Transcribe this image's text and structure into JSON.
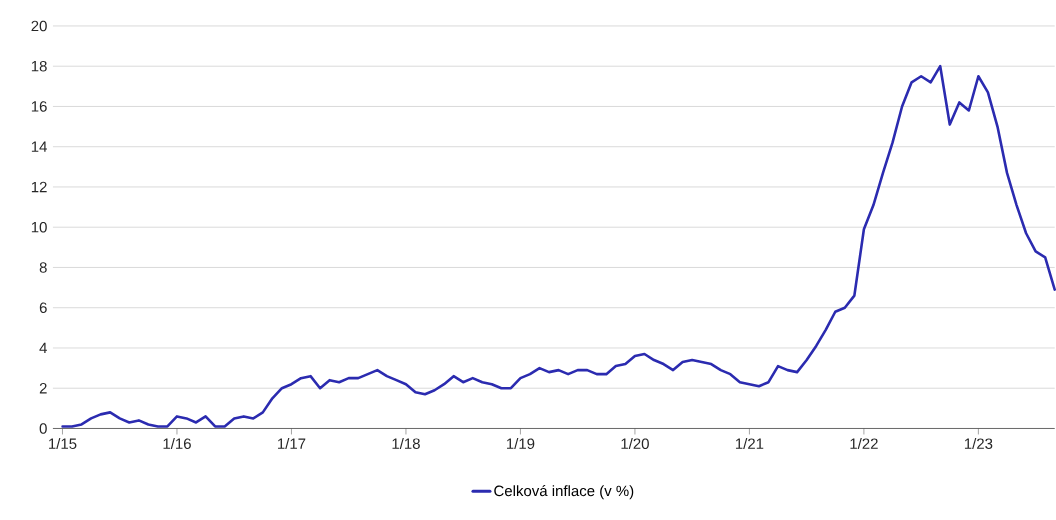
{
  "chart_data": {
    "type": "line",
    "x": [
      "2015-01",
      "2015-02",
      "2015-03",
      "2015-04",
      "2015-05",
      "2015-06",
      "2015-07",
      "2015-08",
      "2015-09",
      "2015-10",
      "2015-11",
      "2015-12",
      "2016-01",
      "2016-02",
      "2016-03",
      "2016-04",
      "2016-05",
      "2016-06",
      "2016-07",
      "2016-08",
      "2016-09",
      "2016-10",
      "2016-11",
      "2016-12",
      "2017-01",
      "2017-02",
      "2017-03",
      "2017-04",
      "2017-05",
      "2017-06",
      "2017-07",
      "2017-08",
      "2017-09",
      "2017-10",
      "2017-11",
      "2017-12",
      "2018-01",
      "2018-02",
      "2018-03",
      "2018-04",
      "2018-05",
      "2018-06",
      "2018-07",
      "2018-08",
      "2018-09",
      "2018-10",
      "2018-11",
      "2018-12",
      "2019-01",
      "2019-02",
      "2019-03",
      "2019-04",
      "2019-05",
      "2019-06",
      "2019-07",
      "2019-08",
      "2019-09",
      "2019-10",
      "2019-11",
      "2019-12",
      "2020-01",
      "2020-02",
      "2020-03",
      "2020-04",
      "2020-05",
      "2020-06",
      "2020-07",
      "2020-08",
      "2020-09",
      "2020-10",
      "2020-11",
      "2020-12",
      "2021-01",
      "2021-02",
      "2021-03",
      "2021-04",
      "2021-05",
      "2021-06",
      "2021-07",
      "2021-08",
      "2021-09",
      "2021-10",
      "2021-11",
      "2021-12",
      "2022-01",
      "2022-02",
      "2022-03",
      "2022-04",
      "2022-05",
      "2022-06",
      "2022-07",
      "2022-08",
      "2022-09",
      "2022-10",
      "2022-11",
      "2022-12",
      "2023-01",
      "2023-02",
      "2023-03",
      "2023-04",
      "2023-05",
      "2023-06",
      "2023-07",
      "2023-08",
      "2023-09"
    ],
    "series": [
      {
        "name": "Celková inflace (v %)",
        "color": "#2b2bb0",
        "values": [
          0.1,
          0.1,
          0.2,
          0.5,
          0.7,
          0.8,
          0.5,
          0.3,
          0.4,
          0.2,
          0.1,
          0.1,
          0.6,
          0.5,
          0.3,
          0.6,
          0.1,
          0.1,
          0.5,
          0.6,
          0.5,
          0.8,
          1.5,
          2.0,
          2.2,
          2.5,
          2.6,
          2.0,
          2.4,
          2.3,
          2.5,
          2.5,
          2.7,
          2.9,
          2.6,
          2.4,
          2.2,
          1.8,
          1.7,
          1.9,
          2.2,
          2.6,
          2.3,
          2.5,
          2.3,
          2.2,
          2.0,
          2.0,
          2.5,
          2.7,
          3.0,
          2.8,
          2.9,
          2.7,
          2.9,
          2.9,
          2.7,
          2.7,
          3.1,
          3.2,
          3.6,
          3.7,
          3.4,
          3.2,
          2.9,
          3.3,
          3.4,
          3.3,
          3.2,
          2.9,
          2.7,
          2.3,
          2.2,
          2.1,
          2.3,
          3.1,
          2.9,
          2.8,
          3.4,
          4.1,
          4.9,
          5.8,
          6.0,
          6.6,
          9.9,
          11.1,
          12.7,
          14.2,
          16.0,
          17.2,
          17.5,
          17.2,
          18.0,
          15.1,
          16.2,
          15.8,
          17.5,
          16.7,
          15.0,
          12.7,
          11.1,
          9.7,
          8.8,
          8.5,
          6.9
        ]
      }
    ],
    "xlim": [
      "2014-12",
      "2023-09"
    ],
    "xticks": [
      {
        "value": "2015-01",
        "label": "1/15"
      },
      {
        "value": "2016-01",
        "label": "1/16"
      },
      {
        "value": "2017-01",
        "label": "1/17"
      },
      {
        "value": "2018-01",
        "label": "1/18"
      },
      {
        "value": "2019-01",
        "label": "1/19"
      },
      {
        "value": "2020-01",
        "label": "1/20"
      },
      {
        "value": "2021-01",
        "label": "1/21"
      },
      {
        "value": "2022-01",
        "label": "1/22"
      },
      {
        "value": "2023-01",
        "label": "1/23"
      }
    ],
    "ylim": [
      0,
      20
    ],
    "yticks": [
      0,
      2,
      4,
      6,
      8,
      10,
      12,
      14,
      16,
      18,
      20
    ],
    "grid": "y",
    "legend": "bottom",
    "marker": "none",
    "line_style": "solid"
  }
}
